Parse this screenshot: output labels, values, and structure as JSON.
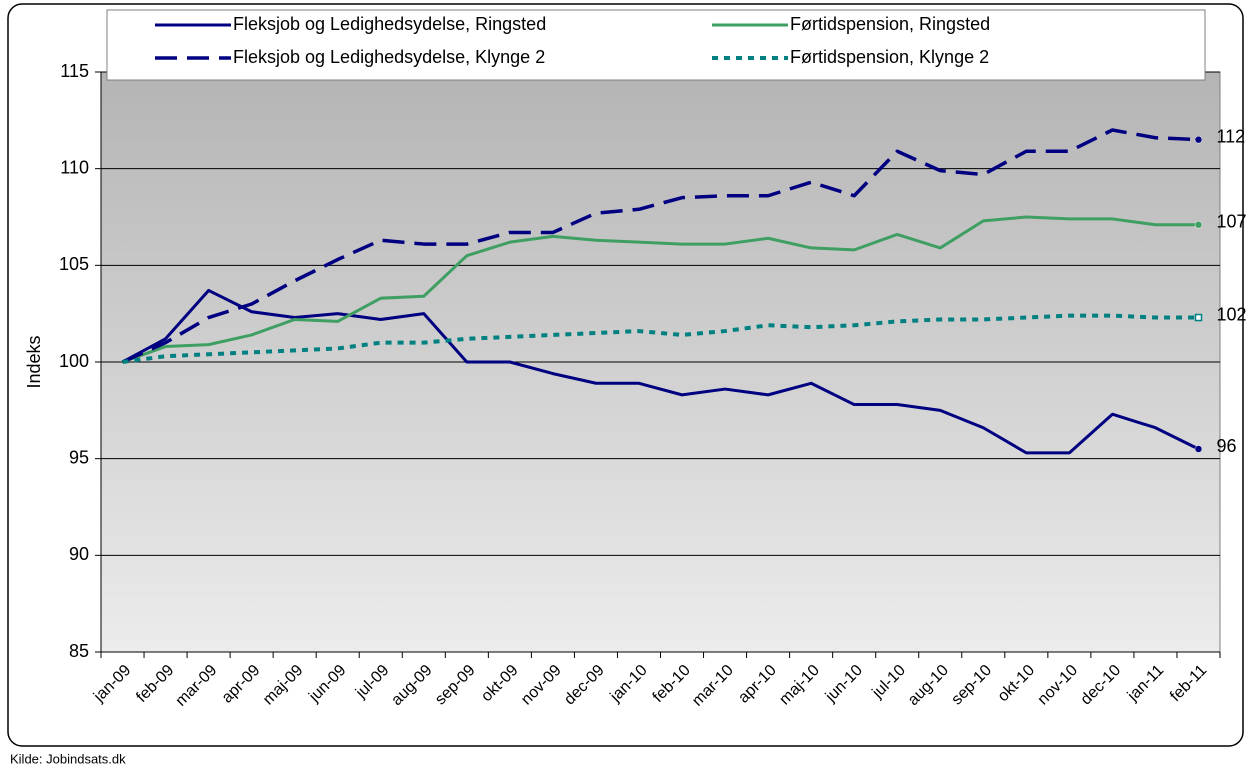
{
  "chart_data": {
    "type": "line",
    "ylabel": "Indeks",
    "source": "Kilde: Jobindsats.dk",
    "categories": [
      "jan-09",
      "feb-09",
      "mar-09",
      "apr-09",
      "maj-09",
      "jun-09",
      "jul-09",
      "aug-09",
      "sep-09",
      "okt-09",
      "nov-09",
      "dec-09",
      "jan-10",
      "feb-10",
      "mar-10",
      "apr-10",
      "maj-10",
      "jun-10",
      "jul-10",
      "aug-10",
      "sep-10",
      "okt-10",
      "nov-10",
      "dec-10",
      "jan-11",
      "feb-11"
    ],
    "ylim": [
      85,
      115
    ],
    "yticks": [
      85,
      90,
      95,
      100,
      105,
      110,
      115
    ],
    "grid": true,
    "series": [
      {
        "name": "Fleksjob og Ledighedsydelse, Ringsted",
        "color": "#000080",
        "style": "solid",
        "marker": "circle",
        "values": [
          100,
          101.2,
          103.7,
          102.6,
          102.3,
          102.5,
          102.2,
          102.5,
          100,
          100,
          99.4,
          98.9,
          98.9,
          98.3,
          98.6,
          98.3,
          98.9,
          97.8,
          97.8,
          97.5,
          96.6,
          95.3,
          95.3,
          97.3,
          96.6,
          95.5
        ],
        "value_labels": [
          null,
          null,
          null,
          null,
          null,
          null,
          null,
          null,
          null,
          null,
          null,
          null,
          null,
          null,
          null,
          null,
          null,
          null,
          null,
          null,
          null,
          null,
          null,
          null,
          null,
          "96"
        ]
      },
      {
        "name": "Førtidspension, Ringsted",
        "color": "#3f9f62",
        "style": "solid",
        "marker": "circle",
        "values": [
          100,
          100.8,
          100.9,
          101.4,
          102.2,
          102.1,
          103.3,
          103.4,
          105.5,
          106.2,
          106.5,
          106.3,
          106.2,
          106.1,
          106.1,
          106.4,
          105.9,
          105.8,
          106.6,
          105.9,
          107.3,
          107.5,
          107.4,
          107.4,
          107.1,
          107.1
        ],
        "value_labels": [
          null,
          null,
          null,
          null,
          null,
          null,
          null,
          null,
          null,
          null,
          null,
          null,
          null,
          null,
          null,
          null,
          null,
          null,
          null,
          null,
          null,
          null,
          null,
          null,
          null,
          "107"
        ]
      },
      {
        "name": "Fleksjob og Ledighedsydelse, Klynge 2",
        "color": "#000080",
        "style": "dashed",
        "marker": "circle",
        "values": [
          100,
          101,
          102.3,
          103,
          104.2,
          105.3,
          106.3,
          106.1,
          106.1,
          106.7,
          106.7,
          107.7,
          107.9,
          108.5,
          108.6,
          108.6,
          109.3,
          108.6,
          110.9,
          109.9,
          109.7,
          110.9,
          110.9,
          112,
          111.6,
          111.5
        ],
        "value_labels": [
          null,
          null,
          null,
          null,
          null,
          null,
          null,
          null,
          null,
          null,
          null,
          null,
          null,
          null,
          null,
          null,
          null,
          null,
          null,
          null,
          null,
          null,
          null,
          null,
          null,
          "112"
        ]
      },
      {
        "name": "Førtidspension, Klynge 2",
        "color": "#008080",
        "style": "dotted",
        "marker": "square",
        "values": [
          100,
          100.3,
          100.4,
          100.5,
          100.6,
          100.7,
          101,
          101,
          101.2,
          101.3,
          101.4,
          101.5,
          101.6,
          101.4,
          101.6,
          101.9,
          101.8,
          101.9,
          102.1,
          102.2,
          102.2,
          102.3,
          102.4,
          102.4,
          102.3,
          102.3
        ],
        "value_labels": [
          null,
          null,
          null,
          null,
          null,
          null,
          null,
          null,
          null,
          null,
          null,
          null,
          null,
          null,
          null,
          null,
          null,
          null,
          null,
          null,
          null,
          null,
          null,
          null,
          null,
          "102"
        ]
      }
    ]
  }
}
